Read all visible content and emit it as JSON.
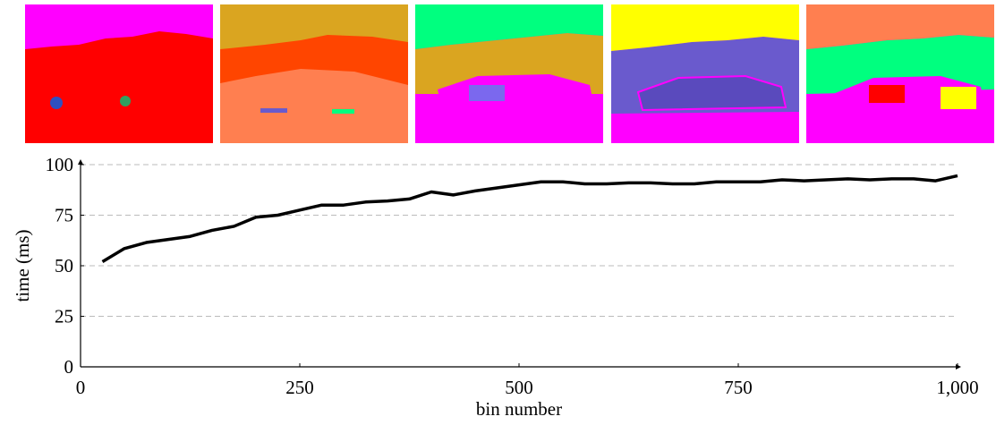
{
  "chart_data": {
    "type": "line",
    "x_label": "bin number",
    "y_label": "time (ms)",
    "x": [
      25,
      50,
      75,
      100,
      125,
      150,
      175,
      200,
      225,
      250,
      275,
      300,
      325,
      350,
      375,
      400,
      425,
      450,
      475,
      500,
      525,
      550,
      575,
      600,
      625,
      650,
      675,
      700,
      725,
      750,
      775,
      800,
      825,
      850,
      875,
      900,
      925,
      950,
      975,
      1000
    ],
    "values": [
      52,
      58.5,
      61.5,
      63,
      64.5,
      67.5,
      69.5,
      74,
      75,
      77.5,
      80,
      80,
      81.5,
      82,
      83,
      86.5,
      85,
      87,
      88.5,
      90,
      91.5,
      91.5,
      90.5,
      90.5,
      91,
      91,
      90.5,
      90.5,
      91.5,
      91.5,
      91.5,
      92.5,
      92,
      92.5,
      93,
      92.5,
      93,
      93,
      92,
      94.5
    ],
    "color": "#000000",
    "xlim": [
      0,
      1000
    ],
    "xticks": [
      0,
      250,
      500,
      750,
      {
        "value": 1000,
        "label": "1,000"
      }
    ],
    "ylim": [
      0,
      100
    ],
    "yticks": [
      0,
      25,
      50,
      75,
      100
    ],
    "grid": true
  }
}
